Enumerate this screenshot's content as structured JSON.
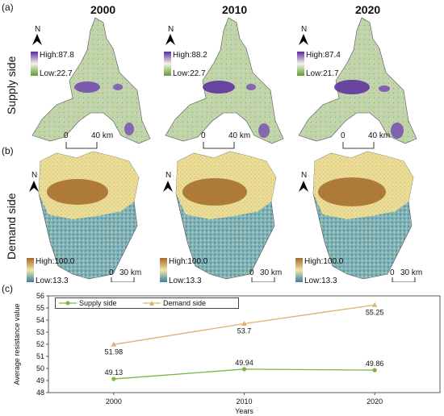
{
  "panels": {
    "a": "(a)",
    "b": "(b)",
    "c": "(c)"
  },
  "years": [
    "2000",
    "2010",
    "2020"
  ],
  "rows": {
    "supply": "Supply side",
    "demand": "Demand side"
  },
  "north": "N",
  "supply_legends": [
    {
      "high": "High:87.8",
      "low": "Low:22.7"
    },
    {
      "high": "High:88.2",
      "low": "Low:22.7"
    },
    {
      "high": "High:87.4",
      "low": "Low:21.7"
    }
  ],
  "demand_legends": [
    {
      "high": "High:100.0",
      "low": "Low:13.3"
    },
    {
      "high": "High:100.0",
      "low": "Low:13.3"
    },
    {
      "high": "High:100.0",
      "low": "Low:13.3"
    }
  ],
  "supply_scale": {
    "zero": "0",
    "dist": "40 km"
  },
  "demand_scale": {
    "zero": "0",
    "dist": "30 km"
  },
  "colors": {
    "supply_high": "#5a2ca0",
    "supply_low": "#5e9e2e",
    "supply_base": "#b7d49a",
    "demand_high": "#a66a2a",
    "demand_mid": "#f0e6a8",
    "demand_low": "#3f7fa0",
    "supply_line": "#7cb342",
    "demand_line": "#e0b070"
  },
  "chart_data": {
    "type": "line",
    "x": [
      2000,
      2010,
      2020
    ],
    "series": [
      {
        "name": "Supply  side",
        "values": [
          49.13,
          49.94,
          49.86
        ],
        "labels": [
          "49.13",
          "49.94",
          "49.86"
        ],
        "marker": "circle"
      },
      {
        "name": "Demand side",
        "values": [
          51.98,
          53.7,
          55.25
        ],
        "labels": [
          "51.98",
          "53.7",
          "55.25"
        ],
        "marker": "triangle"
      }
    ],
    "xlabel": "Years",
    "ylabel": "Average resistance value",
    "ylim": [
      48,
      56
    ],
    "yticks": [
      "48",
      "49",
      "50",
      "51",
      "52",
      "53",
      "54",
      "55",
      "56"
    ],
    "xticks": [
      "2000",
      "2010",
      "2020"
    ],
    "grid": false,
    "legend": "top-left"
  }
}
